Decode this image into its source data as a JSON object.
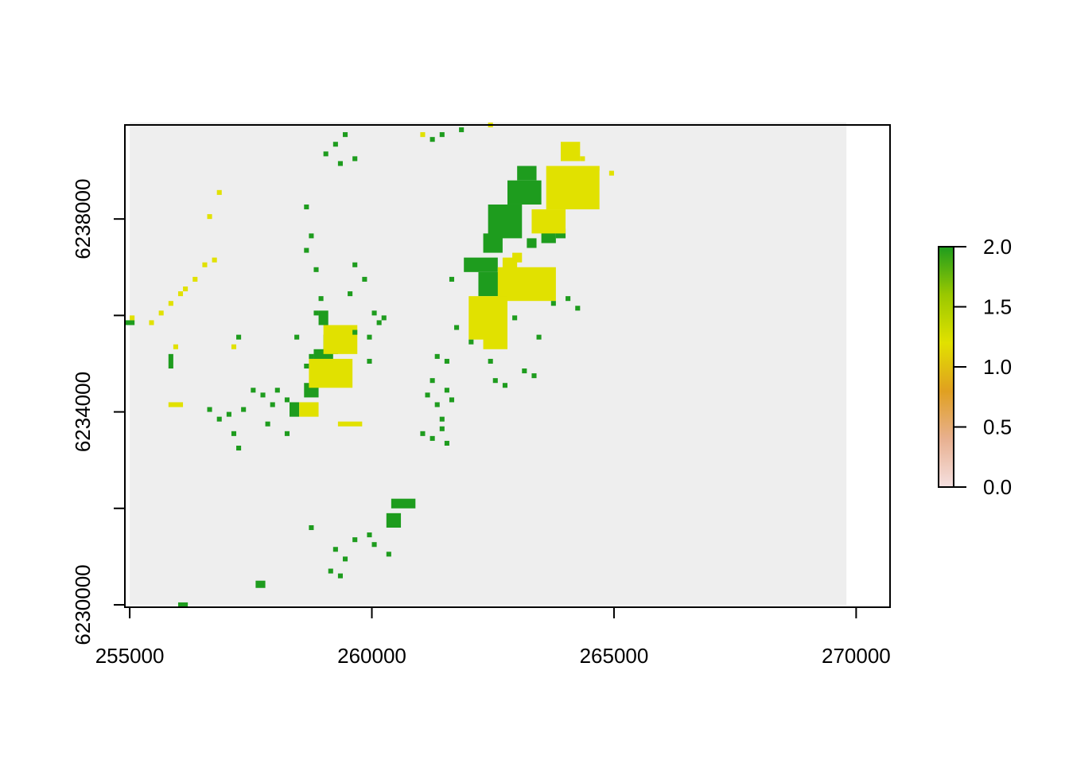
{
  "chart_data": {
    "type": "heatmap",
    "title": "",
    "xlabel": "",
    "ylabel": "",
    "xlim": [
      254900,
      270700
    ],
    "ylim": [
      6229950,
      6239950
    ],
    "raster_extent": {
      "xmin": 255000,
      "xmax": 269800,
      "ymin": 6230000,
      "ymax": 6240000
    },
    "cell_size": 100,
    "x_ticks": [
      255000,
      260000,
      265000,
      270000
    ],
    "x_tick_labels": [
      "255000",
      "260000",
      "265000",
      "270000"
    ],
    "y_ticks": [
      6230000,
      6232000,
      6234000,
      6236000,
      6238000
    ],
    "y_tick_labels": [
      "6230000",
      "",
      "6234000",
      "",
      "6238000"
    ],
    "colors": {
      "0": "#eeeeee",
      "1": "#e1e100",
      "2": "#1e9c1e",
      "background_na": "#ffffff"
    },
    "legend": {
      "placement": "right",
      "range": [
        0,
        2
      ],
      "tick_labels": [
        "0.0",
        "0.5",
        "1.0",
        "1.5",
        "2.0"
      ],
      "ticks": [
        0,
        0.5,
        1.0,
        1.5,
        2.0
      ],
      "gradient": [
        "#f5e0e0",
        "#e8b090",
        "#e0a020",
        "#e1e100",
        "#9ac800",
        "#1e9c1e"
      ]
    },
    "base_value": 0,
    "features": [
      {
        "value": 2,
        "rects": [
          [
            262400,
            6237600,
            700,
            700
          ],
          [
            262800,
            6238300,
            700,
            500
          ],
          [
            263000,
            6238800,
            400,
            300
          ],
          [
            262300,
            6237300,
            400,
            400
          ],
          [
            261900,
            6236900,
            700,
            300
          ],
          [
            262200,
            6236400,
            600,
            500
          ],
          [
            263500,
            6237500,
            300,
            300
          ],
          [
            263800,
            6237600,
            200,
            200
          ],
          [
            263200,
            6237400,
            200,
            200
          ],
          [
            261600,
            6236700,
            100,
            100
          ],
          [
            258800,
            6234700,
            400,
            600
          ],
          [
            258600,
            6234300,
            300,
            300
          ],
          [
            258300,
            6233900,
            200,
            300
          ],
          [
            259000,
            6235200,
            300,
            400
          ],
          [
            258900,
            6235800,
            200,
            300
          ],
          [
            260400,
            6232000,
            500,
            200
          ],
          [
            260300,
            6231600,
            300,
            300
          ],
          [
            257600,
            6230350,
            200,
            150
          ],
          [
            256000,
            6229950,
            200,
            100
          ],
          [
            255800,
            6234900,
            100,
            300
          ],
          [
            254900,
            6235800,
            200,
            100
          ]
        ]
      },
      {
        "value": 1,
        "rects": [
          [
            263600,
            6238200,
            1100,
            900
          ],
          [
            263300,
            6237700,
            700,
            500
          ],
          [
            262600,
            6236300,
            1200,
            700
          ],
          [
            262000,
            6235500,
            800,
            900
          ],
          [
            262300,
            6235300,
            500,
            300
          ],
          [
            262700,
            6236900,
            300,
            300
          ],
          [
            263900,
            6239200,
            400,
            400
          ],
          [
            258700,
            6234500,
            900,
            600
          ],
          [
            259000,
            6235200,
            700,
            600
          ],
          [
            258500,
            6233900,
            400,
            300
          ],
          [
            259300,
            6233700,
            500,
            100
          ],
          [
            262900,
            6237100,
            200,
            200
          ],
          [
            255800,
            6234100,
            300,
            100
          ],
          [
            255000,
            6235900,
            100,
            100
          ]
        ]
      }
    ],
    "scatter_cells": [
      [
        259200,
        6239500,
        2
      ],
      [
        259400,
        6239700,
        2
      ],
      [
        259000,
        6239300,
        2
      ],
      [
        259600,
        6239200,
        2
      ],
      [
        259300,
        6239100,
        2
      ],
      [
        261200,
        6239600,
        2
      ],
      [
        261400,
        6239700,
        2
      ],
      [
        261800,
        6239800,
        2
      ],
      [
        262400,
        6239900,
        1
      ],
      [
        261000,
        6239700,
        1
      ],
      [
        256800,
        6238500,
        1
      ],
      [
        256600,
        6238000,
        1
      ],
      [
        256700,
        6237100,
        1
      ],
      [
        256500,
        6237000,
        1
      ],
      [
        256300,
        6236700,
        1
      ],
      [
        256100,
        6236500,
        1
      ],
      [
        256000,
        6236400,
        1
      ],
      [
        255800,
        6236200,
        1
      ],
      [
        255600,
        6236000,
        1
      ],
      [
        255400,
        6235800,
        1
      ],
      [
        258600,
        6238200,
        2
      ],
      [
        258700,
        6237600,
        2
      ],
      [
        258600,
        6237300,
        2
      ],
      [
        258800,
        6236900,
        2
      ],
      [
        259500,
        6236400,
        2
      ],
      [
        259600,
        6237000,
        2
      ],
      [
        259800,
        6236700,
        2
      ],
      [
        260000,
        6236000,
        2
      ],
      [
        260100,
        6235800,
        2
      ],
      [
        259900,
        6235500,
        2
      ],
      [
        261300,
        6235100,
        2
      ],
      [
        261500,
        6235000,
        2
      ],
      [
        261200,
        6234600,
        2
      ],
      [
        261100,
        6234300,
        2
      ],
      [
        261500,
        6234400,
        2
      ],
      [
        261300,
        6234100,
        2
      ],
      [
        261400,
        6233800,
        2
      ],
      [
        261000,
        6233500,
        2
      ],
      [
        261200,
        6233400,
        2
      ],
      [
        261500,
        6233300,
        2
      ],
      [
        261400,
        6233600,
        2
      ],
      [
        262400,
        6235000,
        2
      ],
      [
        262500,
        6234600,
        2
      ],
      [
        262700,
        6234500,
        2
      ],
      [
        263100,
        6234800,
        2
      ],
      [
        263300,
        6234700,
        2
      ],
      [
        257500,
        6234400,
        2
      ],
      [
        257700,
        6234300,
        2
      ],
      [
        257900,
        6234100,
        2
      ],
      [
        257300,
        6234000,
        2
      ],
      [
        257000,
        6233900,
        2
      ],
      [
        256600,
        6234000,
        2
      ],
      [
        256800,
        6233800,
        2
      ],
      [
        257100,
        6233500,
        2
      ],
      [
        257200,
        6233200,
        2
      ],
      [
        257800,
        6233700,
        2
      ],
      [
        258200,
        6233500,
        2
      ],
      [
        258000,
        6234400,
        2
      ],
      [
        258200,
        6234200,
        2
      ],
      [
        255900,
        6235300,
        1
      ],
      [
        257100,
        6235300,
        1
      ],
      [
        257200,
        6235500,
        2
      ],
      [
        258400,
        6235500,
        2
      ],
      [
        258700,
        6235100,
        2
      ],
      [
        258900,
        6236300,
        2
      ],
      [
        258800,
        6236000,
        2
      ],
      [
        258600,
        6234900,
        2
      ],
      [
        259900,
        6235000,
        2
      ],
      [
        260200,
        6235900,
        2
      ],
      [
        259600,
        6235600,
        2
      ],
      [
        258700,
        6231550,
        2
      ],
      [
        259200,
        6231100,
        2
      ],
      [
        259400,
        6230900,
        2
      ],
      [
        259600,
        6231300,
        2
      ],
      [
        259900,
        6231400,
        2
      ],
      [
        260000,
        6231200,
        2
      ],
      [
        259100,
        6230650,
        2
      ],
      [
        259300,
        6230550,
        2
      ],
      [
        260300,
        6231000,
        2
      ],
      [
        261600,
        6234200,
        2
      ],
      [
        261700,
        6235700,
        2
      ],
      [
        262000,
        6235400,
        2
      ],
      [
        263400,
        6235500,
        2
      ],
      [
        262900,
        6235900,
        2
      ],
      [
        263700,
        6236200,
        2
      ],
      [
        264000,
        6236300,
        2
      ],
      [
        264200,
        6236100,
        2
      ],
      [
        264600,
        6239000,
        1
      ],
      [
        264900,
        6238900,
        1
      ],
      [
        264300,
        6239200,
        1
      ]
    ]
  }
}
